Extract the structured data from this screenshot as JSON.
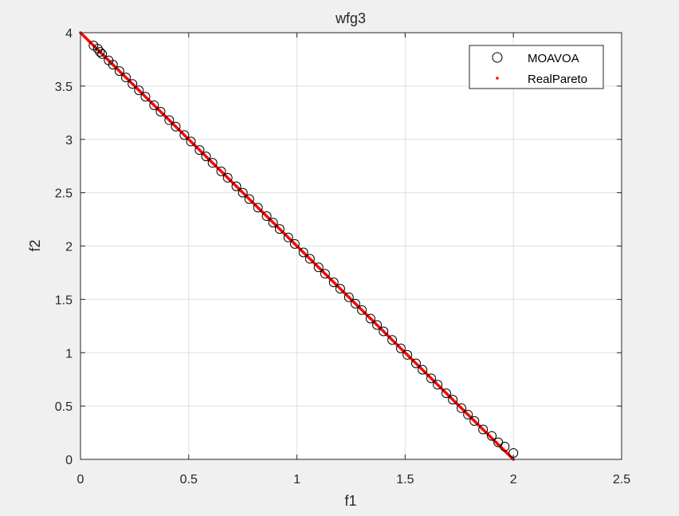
{
  "chart_data": {
    "type": "scatter",
    "title": "wfg3",
    "xlabel": "f1",
    "ylabel": "f2",
    "xlim": [
      0,
      2.5
    ],
    "ylim": [
      0,
      4
    ],
    "xticks": [
      0,
      0.5,
      1,
      1.5,
      2,
      2.5
    ],
    "yticks": [
      0,
      0.5,
      1,
      1.5,
      2,
      2.5,
      3,
      3.5,
      4
    ],
    "xtick_labels": [
      "0",
      "0.5",
      "1",
      "1.5",
      "2",
      "2.5"
    ],
    "ytick_labels": [
      "0",
      "0.5",
      "1",
      "1.5",
      "2",
      "2.5",
      "3",
      "3.5",
      "4"
    ],
    "grid": true,
    "legend": {
      "position": "top-right"
    },
    "series": [
      {
        "name": "MOAVOA",
        "marker": "circle",
        "color": "#000000",
        "x": [
          0.06,
          0.08,
          0.09,
          0.1,
          0.13,
          0.15,
          0.18,
          0.21,
          0.24,
          0.27,
          0.3,
          0.34,
          0.37,
          0.41,
          0.44,
          0.48,
          0.51,
          0.55,
          0.58,
          0.61,
          0.65,
          0.68,
          0.72,
          0.75,
          0.78,
          0.82,
          0.86,
          0.89,
          0.92,
          0.96,
          0.99,
          1.03,
          1.06,
          1.1,
          1.13,
          1.17,
          1.2,
          1.24,
          1.27,
          1.3,
          1.34,
          1.37,
          1.4,
          1.44,
          1.48,
          1.51,
          1.55,
          1.58,
          1.62,
          1.65,
          1.69,
          1.72,
          1.76,
          1.79,
          1.82,
          1.86,
          1.9,
          1.93,
          1.96,
          2.0
        ],
        "y": [
          3.88,
          3.85,
          3.82,
          3.8,
          3.74,
          3.7,
          3.64,
          3.58,
          3.52,
          3.46,
          3.4,
          3.32,
          3.26,
          3.18,
          3.12,
          3.04,
          2.98,
          2.9,
          2.84,
          2.78,
          2.7,
          2.64,
          2.56,
          2.5,
          2.44,
          2.36,
          2.28,
          2.22,
          2.16,
          2.08,
          2.02,
          1.94,
          1.88,
          1.8,
          1.74,
          1.66,
          1.6,
          1.52,
          1.46,
          1.4,
          1.32,
          1.26,
          1.2,
          1.12,
          1.04,
          0.98,
          0.9,
          0.84,
          0.76,
          0.7,
          0.62,
          0.56,
          0.48,
          0.42,
          0.36,
          0.28,
          0.22,
          0.16,
          0.12,
          0.06
        ]
      },
      {
        "name": "RealPareto",
        "marker": "dot",
        "color": "#ff0000",
        "x": [
          0,
          2
        ],
        "y": [
          4,
          0
        ]
      }
    ]
  }
}
